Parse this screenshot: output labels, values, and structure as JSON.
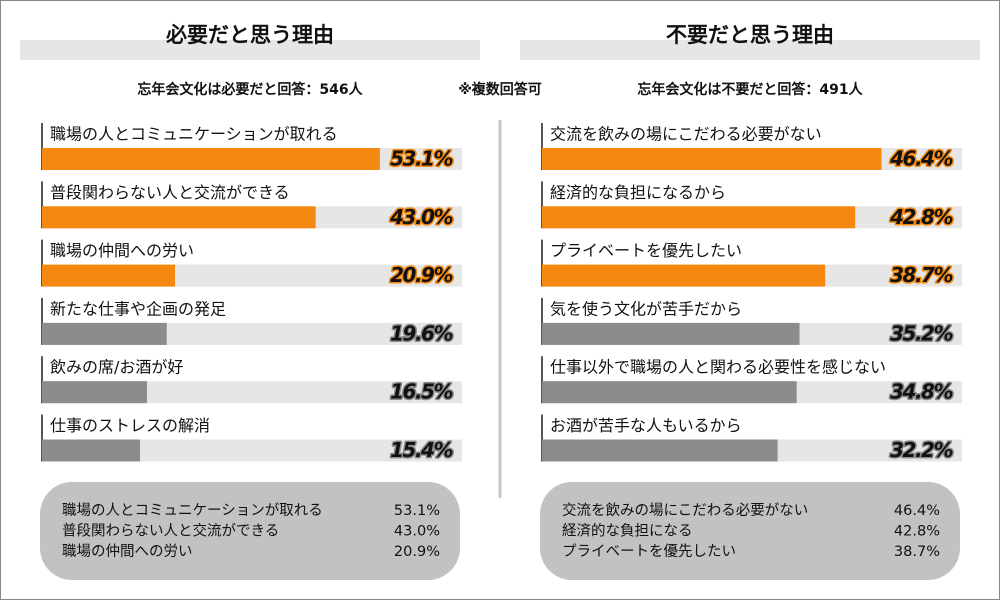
{
  "note": "※複数回答可",
  "chart_data": [
    {
      "type": "bar",
      "orientation": "horizontal",
      "title": "必要だと思う理由",
      "subtitle": "忘年会文化は必要だと回答：546人",
      "categories": [
        "職場の人とコミュニケーションが取れる",
        "普段関わらない人と交流ができる",
        "職場の仲間への労い",
        "新たな仕事や企画の発足",
        "飲みの席/お酒が好",
        "仕事のストレスの解消"
      ],
      "values": [
        53.1,
        43.0,
        20.9,
        19.6,
        16.5,
        15.4
      ],
      "value_labels": [
        "53.1%",
        "43.0%",
        "20.9%",
        "19.6%",
        "16.5%",
        "15.4%"
      ],
      "colors": [
        "#f5890f",
        "#f5890f",
        "#f5890f",
        "#8c8c8c",
        "#8c8c8c",
        "#8c8c8c"
      ],
      "xlim": [
        0,
        66
      ],
      "summary": [
        {
          "label": "職場の人とコミュニケーションが取れる",
          "text": "53.1%"
        },
        {
          "label": "普段関わらない人と交流ができる",
          "text": "43.0%"
        },
        {
          "label": "職場の仲間への労い",
          "text": "20.9%"
        }
      ]
    },
    {
      "type": "bar",
      "orientation": "horizontal",
      "title": "不要だと思う理由",
      "subtitle": "忘年会文化は不要だと回答：491人",
      "categories": [
        "交流を飲みの場にこだわる必要がない",
        "経済的な負担になるから",
        "プライベートを優先したい",
        "気を使う文化が苦手だから",
        "仕事以外で職場の人と関わる必要性を感じない",
        "お酒が苦手な人もいるから"
      ],
      "values": [
        46.4,
        42.8,
        38.7,
        35.2,
        34.8,
        32.2
      ],
      "value_labels": [
        "46.4%",
        "42.8%",
        "38.7%",
        "35.2%",
        "34.8%",
        "32.2%"
      ],
      "colors": [
        "#f5890f",
        "#f5890f",
        "#f5890f",
        "#8c8c8c",
        "#8c8c8c",
        "#8c8c8c"
      ],
      "xlim": [
        0,
        57.4
      ],
      "summary": [
        {
          "label": "交流を飲みの場にこだわる必要がない",
          "text": "46.4%"
        },
        {
          "label": "経済的な負担になる",
          "text": "42.8%"
        },
        {
          "label": "プライベートを優先したい",
          "text": "38.7%"
        }
      ]
    }
  ]
}
